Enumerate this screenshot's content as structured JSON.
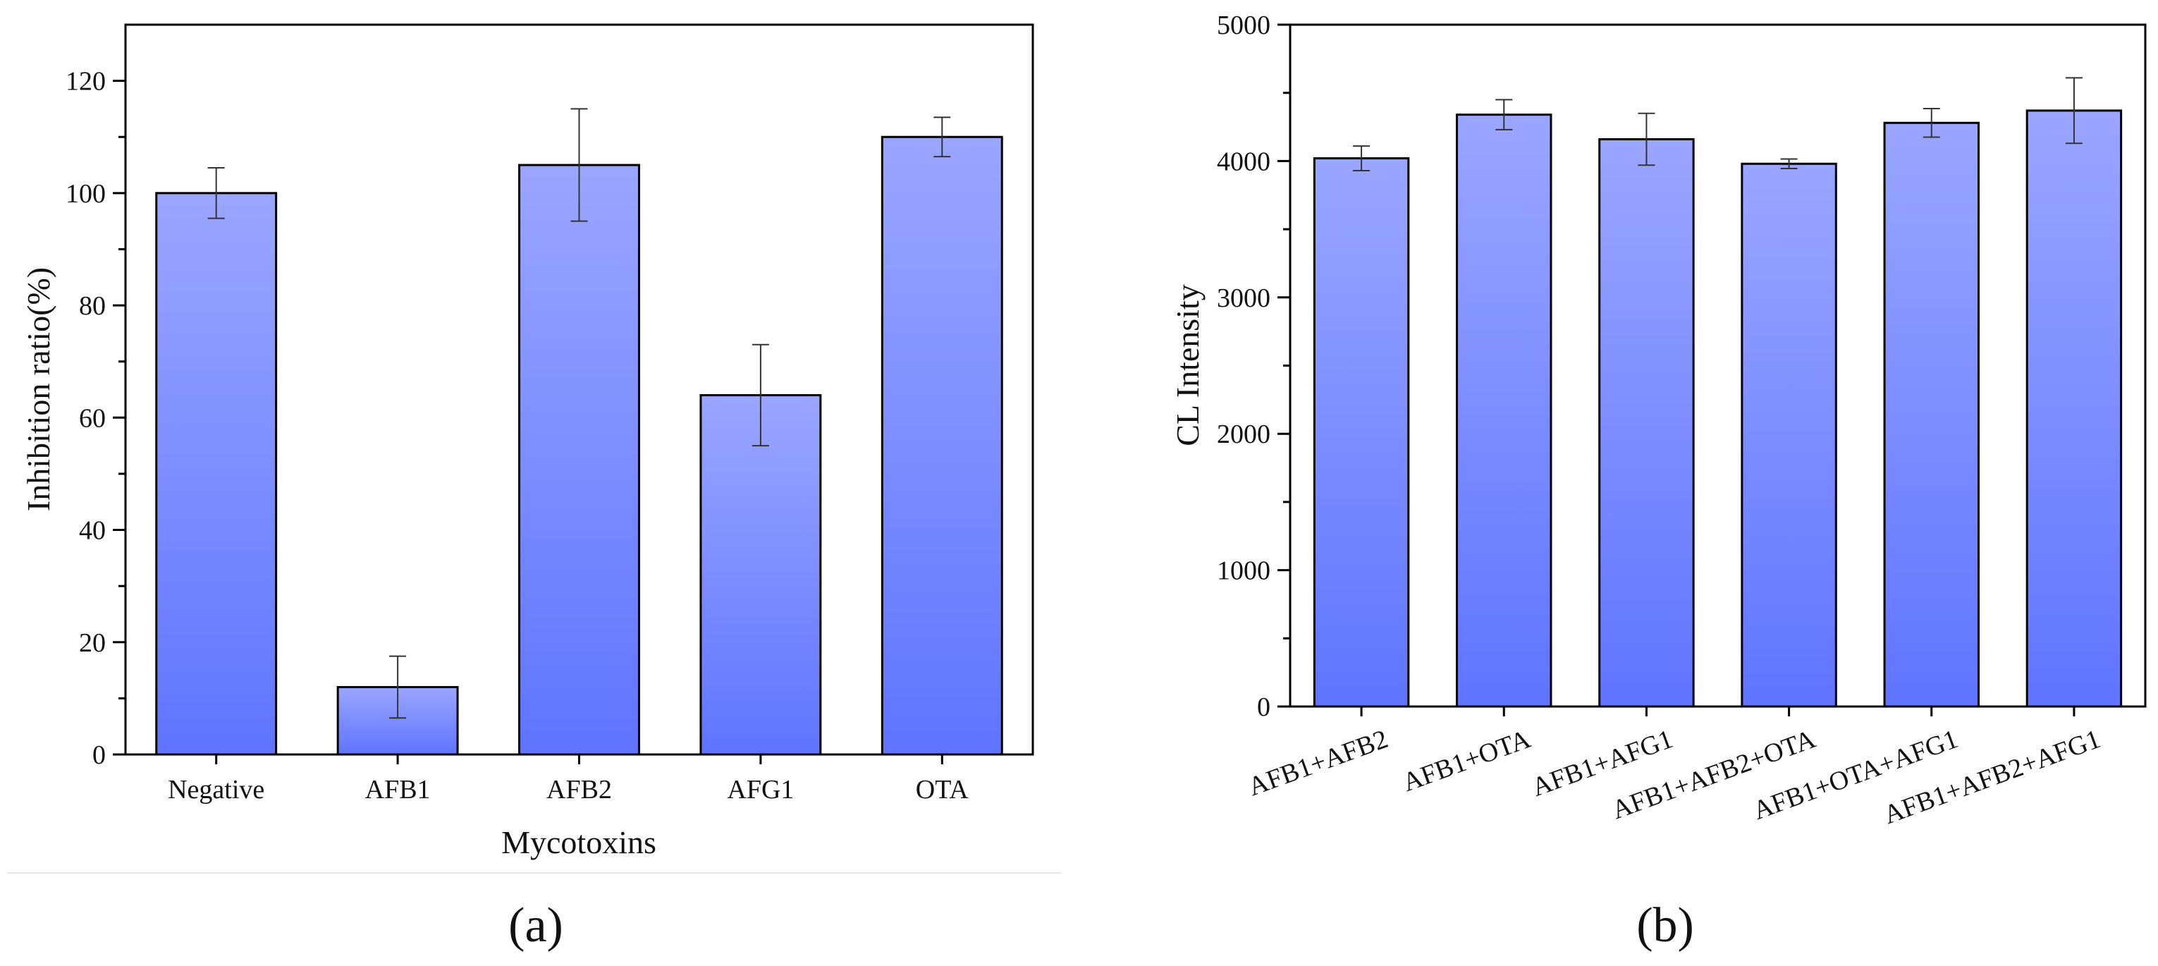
{
  "chart_data": [
    {
      "type": "bar",
      "panel_label": "(a)",
      "categories": [
        "Negative",
        "AFB1",
        "AFB2",
        "AFG1",
        "OTA"
      ],
      "values": [
        100,
        12,
        105,
        64,
        110
      ],
      "errors": [
        4.5,
        5.5,
        10,
        9,
        3.5
      ],
      "xlabel": "Mycotoxins",
      "ylabel": "Inhibition ratio(%)",
      "ylim": [
        0,
        130
      ],
      "yticks": [
        0,
        20,
        40,
        60,
        80,
        100,
        120
      ],
      "grid": false,
      "bar_color_top": "#9aa6ff",
      "bar_color_bottom": "#5f74ff"
    },
    {
      "type": "bar",
      "panel_label": "(b)",
      "categories": [
        "AFB1+AFB2",
        "AFB1+OTA",
        "AFB1+AFG1",
        "AFB1+AFB2+OTA",
        "AFB1+OTA+AFG1",
        "AFB1+AFB2+AFG1"
      ],
      "values": [
        4020,
        4340,
        4160,
        3980,
        4280,
        4370
      ],
      "errors": [
        90,
        110,
        190,
        35,
        105,
        240
      ],
      "xlabel": "",
      "ylabel": "CL Intensity",
      "ylim": [
        0,
        5000
      ],
      "yticks": [
        0,
        1000,
        2000,
        3000,
        4000,
        5000
      ],
      "grid": false,
      "bar_color_top": "#9aa6ff",
      "bar_color_bottom": "#5f74ff"
    }
  ]
}
